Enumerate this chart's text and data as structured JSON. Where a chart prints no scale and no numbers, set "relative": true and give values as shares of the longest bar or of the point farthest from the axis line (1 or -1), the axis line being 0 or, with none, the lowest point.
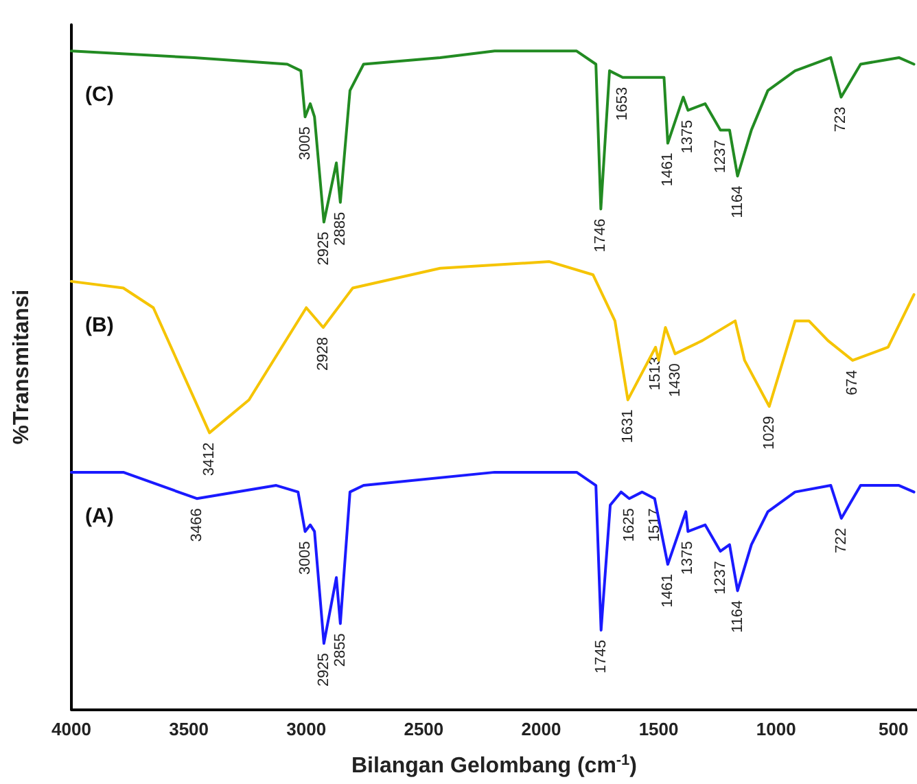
{
  "chart_data": {
    "type": "line",
    "relative": true,
    "xlabel": "Bilangan Gelombang (cm$^{-1}$)",
    "ylabel": "%Transmitansi",
    "xlim": [
      4000,
      400
    ],
    "xticks": [
      4000,
      3500,
      3000,
      2500,
      2000,
      1500,
      1000,
      500
    ],
    "tick_labels": "x",
    "grid": false,
    "legend": false,
    "marker": "none",
    "line_style": "solid",
    "series": [
      {
        "name": "(C)",
        "color": "#228b22",
        "x": [
          4000,
          3477,
          3081,
          3023,
          3005,
          2983,
          2965,
          2925,
          2872,
          2855,
          2814,
          2756,
          2430,
          2198,
          1849,
          1767,
          1746,
          1709,
          1653,
          1570,
          1477,
          1461,
          1395,
          1375,
          1302,
          1237,
          1198,
          1164,
          1105,
          1035,
          919,
          767,
          723,
          640,
          477,
          413
        ],
        "values": [
          1.0,
          0.99,
          0.98,
          0.97,
          0.9,
          0.92,
          0.9,
          0.74,
          0.83,
          0.77,
          0.94,
          0.98,
          0.99,
          1.0,
          1.0,
          0.98,
          0.76,
          0.97,
          0.96,
          0.96,
          0.96,
          0.86,
          0.93,
          0.91,
          0.92,
          0.88,
          0.88,
          0.81,
          0.88,
          0.94,
          0.97,
          0.99,
          0.93,
          0.98,
          0.99,
          0.98
        ]
      },
      {
        "name": "(B)",
        "color": "#f5c400",
        "x": [
          4000,
          3779,
          3651,
          3412,
          3244,
          3000,
          2928,
          2802,
          2430,
          1965,
          1779,
          1686,
          1631,
          1513,
          1500,
          1471,
          1430,
          1314,
          1174,
          1134,
          1029,
          919,
          860,
          779,
          674,
          523,
          413
        ],
        "values": [
          0.65,
          0.64,
          0.61,
          0.42,
          0.47,
          0.61,
          0.58,
          0.64,
          0.67,
          0.68,
          0.66,
          0.59,
          0.47,
          0.55,
          0.53,
          0.58,
          0.54,
          0.56,
          0.59,
          0.53,
          0.46,
          0.59,
          0.59,
          0.56,
          0.53,
          0.55,
          0.63
        ]
      },
      {
        "name": "(A)",
        "color": "#1a1aff",
        "x": [
          4000,
          3779,
          3466,
          3128,
          3035,
          3005,
          2983,
          2965,
          2925,
          2872,
          2855,
          2814,
          2756,
          2198,
          1849,
          1767,
          1745,
          1706,
          1660,
          1625,
          1570,
          1517,
          1461,
          1384,
          1375,
          1302,
          1237,
          1198,
          1164,
          1105,
          1035,
          919,
          767,
          722,
          640,
          477,
          413
        ],
        "values": [
          0.36,
          0.36,
          0.32,
          0.34,
          0.33,
          0.27,
          0.28,
          0.27,
          0.1,
          0.2,
          0.13,
          0.33,
          0.34,
          0.36,
          0.36,
          0.34,
          0.12,
          0.31,
          0.33,
          0.32,
          0.33,
          0.32,
          0.22,
          0.3,
          0.27,
          0.28,
          0.24,
          0.25,
          0.18,
          0.25,
          0.3,
          0.33,
          0.34,
          0.29,
          0.34,
          0.34,
          0.33
        ]
      }
    ],
    "annotations": [
      {
        "text": "3005",
        "x": 3005,
        "y": 0.9
      },
      {
        "text": "2925",
        "x": 2925,
        "y": 0.74
      },
      {
        "text": "2885",
        "x": 2855,
        "y": 0.77
      },
      {
        "text": "1746",
        "x": 1746,
        "y": 0.76
      },
      {
        "text": "1653",
        "x": 1653,
        "y": 0.96
      },
      {
        "text": "1461",
        "x": 1461,
        "y": 0.86
      },
      {
        "text": "1375",
        "x": 1375,
        "y": 0.91
      },
      {
        "text": "1237",
        "x": 1237,
        "y": 0.88
      },
      {
        "text": "1164",
        "x": 1164,
        "y": 0.81
      },
      {
        "text": "723",
        "x": 723,
        "y": 0.93
      },
      {
        "text": "3412",
        "x": 3412,
        "y": 0.42
      },
      {
        "text": "2928",
        "x": 2928,
        "y": 0.58
      },
      {
        "text": "1631",
        "x": 1631,
        "y": 0.47
      },
      {
        "text": "1513",
        "x": 1513,
        "y": 0.55
      },
      {
        "text": "1430",
        "x": 1430,
        "y": 0.54
      },
      {
        "text": "1029",
        "x": 1029,
        "y": 0.46
      },
      {
        "text": "674",
        "x": 674,
        "y": 0.53
      },
      {
        "text": "3466",
        "x": 3466,
        "y": 0.32
      },
      {
        "text": "3005",
        "x": 3005,
        "y": 0.27
      },
      {
        "text": "2925",
        "x": 2925,
        "y": 0.1
      },
      {
        "text": "2855",
        "x": 2855,
        "y": 0.13
      },
      {
        "text": "1745",
        "x": 1745,
        "y": 0.12
      },
      {
        "text": "1625",
        "x": 1625,
        "y": 0.32
      },
      {
        "text": "1517",
        "x": 1517,
        "y": 0.32
      },
      {
        "text": "1461",
        "x": 1461,
        "y": 0.22
      },
      {
        "text": "1375",
        "x": 1375,
        "y": 0.27
      },
      {
        "text": "1237",
        "x": 1237,
        "y": 0.24
      },
      {
        "text": "1164",
        "x": 1164,
        "y": 0.18
      },
      {
        "text": "722",
        "x": 722,
        "y": 0.29
      }
    ]
  }
}
